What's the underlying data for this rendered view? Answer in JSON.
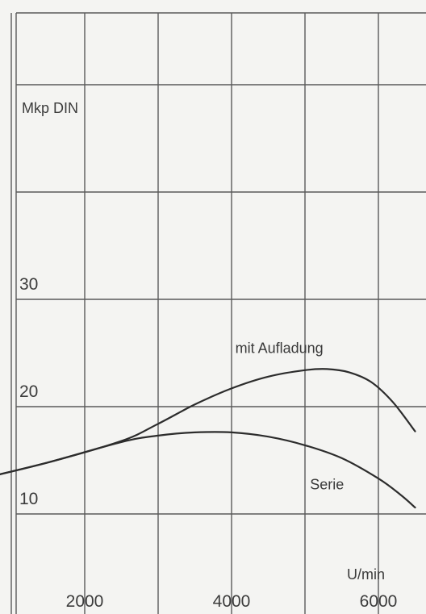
{
  "chart_data": {
    "type": "line",
    "ylabel": "Mkp DIN",
    "xlabel": "U/min",
    "xlim": [
      0,
      7000
    ],
    "ylim": [
      5,
      45
    ],
    "x_ticks": [
      2000,
      4000,
      6000
    ],
    "x_tick_labels": [
      "2000",
      "4000",
      "6000"
    ],
    "y_ticks": [
      10,
      20,
      30
    ],
    "y_tick_labels": [
      "10",
      "20",
      "30"
    ],
    "grid": true,
    "series": [
      {
        "name": "mit Aufladung",
        "x": [
          600,
          1500,
          2500,
          3000,
          3500,
          4000,
          4500,
          5000,
          5300,
          5600,
          5900,
          6200,
          6500
        ],
        "y": [
          13.3,
          14.8,
          16.8,
          18.4,
          20.2,
          21.7,
          22.8,
          23.4,
          23.5,
          23.2,
          22.3,
          20.4,
          17.7
        ]
      },
      {
        "name": "Serie",
        "x": [
          600,
          1500,
          2500,
          3000,
          3500,
          4000,
          4500,
          5000,
          5500,
          6000,
          6300,
          6500
        ],
        "y": [
          13.3,
          14.8,
          16.7,
          17.3,
          17.6,
          17.6,
          17.2,
          16.4,
          15.2,
          13.3,
          11.8,
          10.6
        ]
      }
    ],
    "series_labels": [
      {
        "text": "mit Aufladung",
        "x": 4650,
        "y": 25.0
      },
      {
        "text": "Serie",
        "x": 5300,
        "y": 12.3
      }
    ]
  }
}
